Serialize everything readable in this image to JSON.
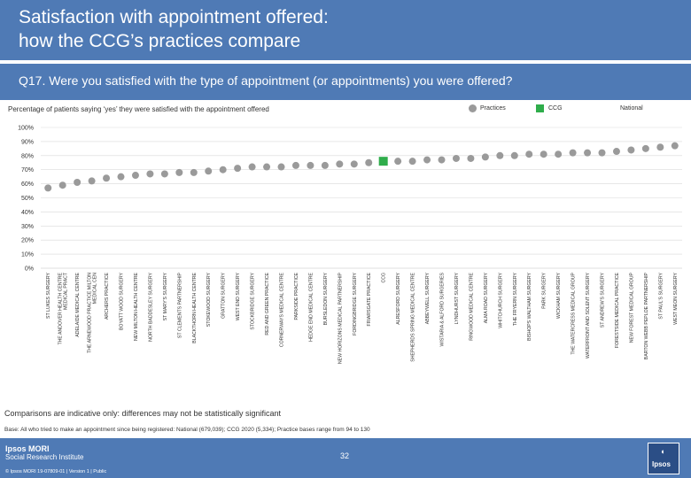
{
  "header": {
    "title_line1": "Satisfaction with appointment offered:",
    "title_line2": "how the CCG’s practices compare",
    "question": "Q17. Were you satisfied with the type of appointment (or appointments) you were offered?",
    "subtitle": "Percentage of patients saying ‘yes’ they were satisfied with the appointment offered"
  },
  "legend": {
    "practices": "Practices",
    "ccg": "CCG",
    "national": "National"
  },
  "colors": {
    "brand": "#4f7ab5",
    "practice_marker": "#9a9a9a",
    "ccg_marker": "#2fad4b",
    "gridline": "#d9d9d9"
  },
  "chart_data": {
    "type": "scatter",
    "ylim": [
      0,
      100
    ],
    "yticks": [
      "0%",
      "10%",
      "20%",
      "30%",
      "40%",
      "50%",
      "60%",
      "70%",
      "80%",
      "90%",
      "100%"
    ],
    "grid": true,
    "categories": [
      "ST LUKES SURGERY",
      "THE ANDOVER HEALTH CENTRE MEDICAL PRACT",
      "ADELAIDE MEDICAL CENTRE",
      "THE ARNEWOOD PRACTICE MILTON MEDICAL CEN",
      "ARCHERS PRACTICE",
      "BOYATT WOOD SURGERY",
      "NEW MILTON HEALTH CENTRE",
      "NORTH BADDESLEY SURGERY",
      "ST MARY'S SURGERY",
      "ST CLEMENTS PARTNERSHIP",
      "BLACKTHORN HEALTH CENTRE",
      "STOKEWOOD SURGERY",
      "GRATTON SURGERY",
      "WEST END SURGERY",
      "STOCKBRIDGE SURGERY",
      "RED AND GREEN PRACTICE",
      "CORNERWAYS MEDICAL CENTRE",
      "PARKSIDE PRACTICE",
      "HEDGE END MEDICAL CENTRE",
      "BURSLEDON SURGERY",
      "NEW HORIZONS MEDICAL PARTNERSHIP",
      "FORDINGBRIDGE SURGERY",
      "FRIARSGATE PRACTICE",
      "CCG",
      "ALRESFORD SURGERY",
      "SHEPHERDS SPRING MEDICAL CENTRE",
      "ABBEYWELL SURGERY",
      "WISTARIA & ALFORD SURGERIES",
      "LYNDHURST SURGERY",
      "RINGWOOD MEDICAL CENTRE",
      "ALMA ROAD SURGERY",
      "WHITCHURCH SURGERY",
      "THE FRYERN SURGERY",
      "BISHOPS WALTHAM SURGERY",
      "PARK SURGERY",
      "WICKHAM SURGERY",
      "THE WATERCRESS MEDICAL GROUP",
      "WATERFRONT AND SOLENT SURGERY",
      "ST ANDREW'S SURGERY",
      "FORESTSIDE MEDICAL PRACTICE",
      "NEW FOREST MEDICAL GROUP",
      "BARTON WEBB PEPLOE PARTNERSHIP",
      "ST PAUL'S SURGERY",
      "WEST MEON SURGERY"
    ],
    "values": [
      57,
      59,
      61,
      62,
      64,
      65,
      66,
      67,
      67,
      68,
      68,
      69,
      70,
      71,
      72,
      72,
      72,
      73,
      73,
      73,
      74,
      74,
      75,
      76,
      76,
      76,
      77,
      77,
      78,
      78,
      79,
      80,
      80,
      81,
      81,
      81,
      82,
      82,
      82,
      83,
      84,
      85,
      86,
      87
    ],
    "ccg_index": 23,
    "national_value": null
  },
  "footer": {
    "note": "Comparisons are indicative only: differences may not be statistically significant",
    "base": "Base: All who tried to make an appointment since being registered: National (679,039); CCG 2020 (5,334); Practice bases range from 94 to 130",
    "brand_line1": "Ipsos MORI",
    "brand_line2": "Social Research Institute",
    "info": "© Ipsos MORI     19-07809-01 | Version 1 | Public",
    "page_number": "32",
    "logo_top": "◖",
    "logo_text": "Ipsos"
  }
}
